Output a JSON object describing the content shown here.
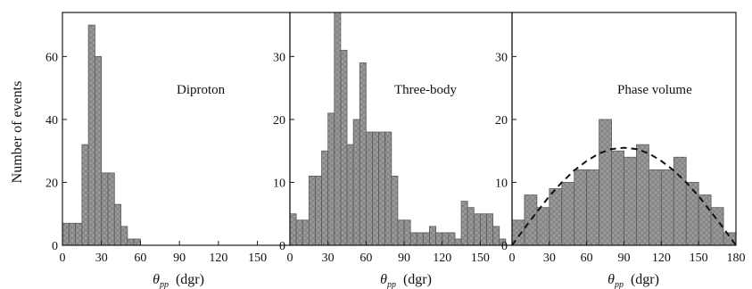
{
  "figure": {
    "ylabel": "Number of events",
    "theta_symbol": "θ",
    "theta_sub": "pp",
    "unit": "(dgr)"
  },
  "colors": {
    "bar_fill": "#9a9a9a",
    "bar_stroke": "#5a5a5a",
    "axis": "#1a1a1a",
    "curve": "#111111"
  },
  "chart_data": [
    {
      "type": "bar",
      "annotation": "Diproton",
      "bin_width": 5,
      "bins": [
        [
          0,
          7
        ],
        [
          5,
          7
        ],
        [
          10,
          7
        ],
        [
          15,
          32
        ],
        [
          20,
          70
        ],
        [
          25,
          60
        ],
        [
          30,
          23
        ],
        [
          35,
          23
        ],
        [
          40,
          13
        ],
        [
          45,
          6
        ],
        [
          50,
          2
        ],
        [
          55,
          2
        ]
      ],
      "xlim": [
        0,
        175
      ],
      "xticks": [
        0,
        30,
        60,
        90,
        120,
        150
      ],
      "ylim": [
        0,
        74
      ],
      "yticks": [
        0,
        20,
        40,
        60
      ],
      "xlabel": "θpp (dgr)",
      "ylabel": "Number of events"
    },
    {
      "type": "bar",
      "annotation": "Three-body",
      "bin_width": 5,
      "bins": [
        [
          0,
          5
        ],
        [
          5,
          4
        ],
        [
          10,
          4
        ],
        [
          15,
          11
        ],
        [
          20,
          11
        ],
        [
          25,
          15
        ],
        [
          30,
          21
        ],
        [
          35,
          37
        ],
        [
          40,
          31
        ],
        [
          45,
          16
        ],
        [
          50,
          20
        ],
        [
          55,
          29
        ],
        [
          60,
          18
        ],
        [
          65,
          18
        ],
        [
          70,
          18
        ],
        [
          75,
          18
        ],
        [
          80,
          11
        ],
        [
          85,
          4
        ],
        [
          90,
          4
        ],
        [
          95,
          2
        ],
        [
          100,
          2
        ],
        [
          105,
          2
        ],
        [
          110,
          3
        ],
        [
          115,
          2
        ],
        [
          120,
          2
        ],
        [
          125,
          2
        ],
        [
          130,
          1
        ],
        [
          135,
          7
        ],
        [
          140,
          6
        ],
        [
          145,
          5
        ],
        [
          150,
          5
        ],
        [
          155,
          5
        ],
        [
          160,
          3
        ],
        [
          165,
          1
        ]
      ],
      "xlim": [
        0,
        175
      ],
      "xticks": [
        0,
        30,
        60,
        90,
        120,
        150
      ],
      "ylim": [
        0,
        37
      ],
      "yticks": [
        0,
        10,
        20,
        30
      ],
      "xlabel": "θpp (dgr)"
    },
    {
      "type": "bar",
      "annotation": "Phase volume",
      "bin_width": 10,
      "bins": [
        [
          0,
          4
        ],
        [
          10,
          8
        ],
        [
          20,
          6
        ],
        [
          30,
          9
        ],
        [
          40,
          10
        ],
        [
          50,
          12
        ],
        [
          60,
          12
        ],
        [
          70,
          20
        ],
        [
          80,
          15
        ],
        [
          90,
          14
        ],
        [
          100,
          16
        ],
        [
          110,
          12
        ],
        [
          120,
          12
        ],
        [
          130,
          14
        ],
        [
          140,
          10
        ],
        [
          150,
          8
        ],
        [
          160,
          6
        ],
        [
          170,
          2
        ]
      ],
      "curve": {
        "style": "dashed",
        "x": [
          0,
          10,
          20,
          30,
          40,
          50,
          60,
          70,
          80,
          90,
          100,
          110,
          120,
          130,
          140,
          150,
          160,
          170,
          180
        ],
        "y": [
          0,
          2.7,
          5.3,
          7.8,
          10.0,
          11.9,
          13.4,
          14.6,
          15.3,
          15.5,
          15.3,
          14.6,
          13.4,
          11.9,
          10.0,
          7.8,
          5.3,
          2.7,
          0
        ]
      },
      "xlim": [
        0,
        180
      ],
      "xticks": [
        0,
        30,
        60,
        90,
        120,
        150,
        180
      ],
      "ylim": [
        0,
        37
      ],
      "yticks": [
        0,
        10,
        20,
        30
      ],
      "xlabel": "θpp (dgr)"
    }
  ]
}
